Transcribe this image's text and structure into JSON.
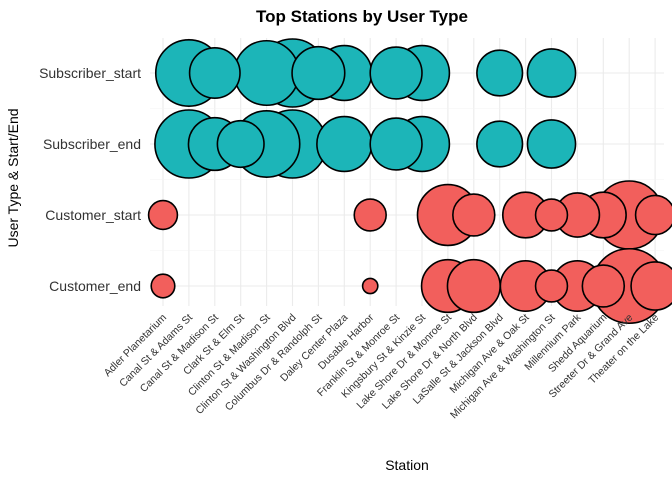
{
  "chart_data": {
    "type": "scatter",
    "title": "Top Stations by User Type",
    "xlabel": "Station",
    "ylabel": "User Type & Start/End",
    "x_categories": [
      "Adler Planetarium",
      "Canal St & Adams St",
      "Canal St & Madison St",
      "Clark St & Elm St",
      "Clinton St & Madison St",
      "Clinton St & Washington Blvd",
      "Columbus Dr & Randolph St",
      "Daley Center Plaza",
      "Dusable Harbor",
      "Franklin St & Monroe St",
      "Kingsbury St & Kinzie St",
      "Lake Shore Dr & Monroe St",
      "Lake Shore Dr & North Blvd",
      "LaSalle St & Jackson Blvd",
      "Michigan Ave & Oak St",
      "Michigan Ave & Washington St",
      "Millennium Park",
      "Shedd Aquarium",
      "Streeter Dr & Grand Ave",
      "Theater on the Lake"
    ],
    "y_categories": [
      "Subscriber_start",
      "Subscriber_end",
      "Customer_start",
      "Customer_end"
    ],
    "grid": true,
    "legend": "none",
    "colors": {
      "Subscriber": "#1cb5b8",
      "Customer": "#f25f5c",
      "outline": "#000000"
    },
    "series": [
      {
        "group": "Subscriber_start",
        "color_key": "Subscriber",
        "points": [
          {
            "x": "Canal St & Adams St",
            "size": 0.95
          },
          {
            "x": "Canal St & Madison St",
            "size": 0.55
          },
          {
            "x": "Clinton St & Madison St",
            "size": 0.9
          },
          {
            "x": "Clinton St & Washington Blvd",
            "size": 1.0
          },
          {
            "x": "Columbus Dr & Randolph St",
            "size": 0.6
          },
          {
            "x": "Daley Center Plaza",
            "size": 0.65
          },
          {
            "x": "Franklin St & Monroe St",
            "size": 0.58
          },
          {
            "x": "Kingsbury St & Kinzie St",
            "size": 0.65
          },
          {
            "x": "LaSalle St & Jackson Blvd",
            "size": 0.45
          },
          {
            "x": "Michigan Ave & Washington St",
            "size": 0.5
          }
        ]
      },
      {
        "group": "Subscriber_end",
        "color_key": "Subscriber",
        "points": [
          {
            "x": "Canal St & Adams St",
            "size": 1.0
          },
          {
            "x": "Canal St & Madison St",
            "size": 0.6
          },
          {
            "x": "Clark St & Elm St",
            "size": 0.47
          },
          {
            "x": "Clinton St & Madison St",
            "size": 0.95
          },
          {
            "x": "Clinton St & Washington Blvd",
            "size": 1.0
          },
          {
            "x": "Daley Center Plaza",
            "size": 0.65
          },
          {
            "x": "Franklin St & Monroe St",
            "size": 0.58
          },
          {
            "x": "Kingsbury St & Kinzie St",
            "size": 0.65
          },
          {
            "x": "LaSalle St & Jackson Blvd",
            "size": 0.45
          },
          {
            "x": "Michigan Ave & Washington St",
            "size": 0.5
          }
        ]
      },
      {
        "group": "Customer_start",
        "color_key": "Customer",
        "points": [
          {
            "x": "Adler Planetarium",
            "size": 0.18
          },
          {
            "x": "Dusable Harbor",
            "size": 0.22
          },
          {
            "x": "Lake Shore Dr & Monroe St",
            "size": 0.8
          },
          {
            "x": "Lake Shore Dr & North Blvd",
            "size": 0.38
          },
          {
            "x": "Michigan Ave & Oak St",
            "size": 0.45
          },
          {
            "x": "Michigan Ave & Washington St",
            "size": 0.22
          },
          {
            "x": "Millennium Park",
            "size": 0.42
          },
          {
            "x": "Shedd Aquarium",
            "size": 0.45
          },
          {
            "x": "Streeter Dr & Grand Ave",
            "size": 1.0
          },
          {
            "x": "Theater on the Lake",
            "size": 0.33
          }
        ]
      },
      {
        "group": "Customer_end",
        "color_key": "Customer",
        "points": [
          {
            "x": "Adler Planetarium",
            "size": 0.12
          },
          {
            "x": "Dusable Harbor",
            "size": 0.05
          },
          {
            "x": "Lake Shore Dr & Monroe St",
            "size": 0.6
          },
          {
            "x": "Lake Shore Dr & North Blvd",
            "size": 0.6
          },
          {
            "x": "Michigan Ave & Oak St",
            "size": 0.55
          },
          {
            "x": "Michigan Ave & Washington St",
            "size": 0.22
          },
          {
            "x": "Millennium Park",
            "size": 0.55
          },
          {
            "x": "Shedd Aquarium",
            "size": 0.38
          },
          {
            "x": "Streeter Dr & Grand Ave",
            "size": 1.2
          },
          {
            "x": "Theater on the Lake",
            "size": 0.5
          }
        ]
      }
    ]
  }
}
